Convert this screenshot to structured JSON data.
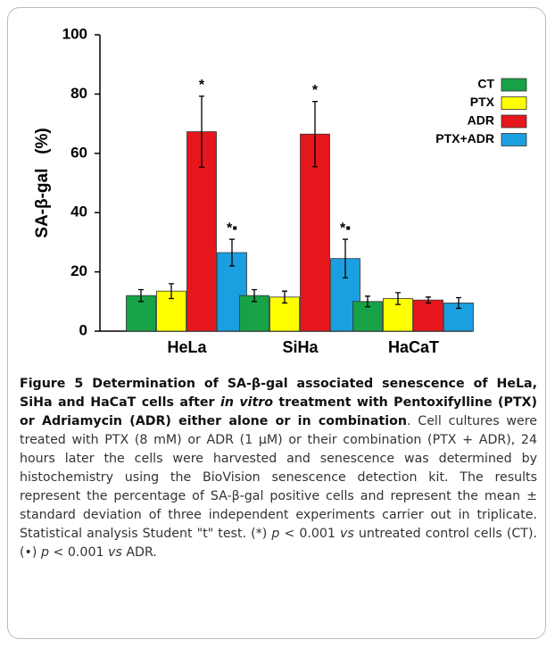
{
  "chart_data": {
    "type": "bar",
    "ylabel": "SA-β-gal   (%)",
    "categories": [
      "HeLa",
      "SiHa",
      "HaCaT"
    ],
    "series": [
      {
        "name": "CT",
        "color": "#17a247",
        "values": [
          12,
          12,
          10
        ],
        "errors": [
          2,
          2,
          1.8
        ]
      },
      {
        "name": "PTX",
        "color": "#ffff00",
        "values": [
          13.5,
          11.5,
          11
        ],
        "errors": [
          2.5,
          2,
          2
        ]
      },
      {
        "name": "ADR",
        "color": "#e5161c",
        "values": [
          67.3,
          66.5,
          10.5
        ],
        "errors": [
          12,
          11,
          1
        ],
        "notes": [
          "*",
          "*",
          null
        ]
      },
      {
        "name": "PTX+ADR",
        "color": "#1c9fe0",
        "values": [
          26.5,
          24.5,
          9.5
        ],
        "errors": [
          4.5,
          6.5,
          1.8
        ],
        "notes": [
          "*▪",
          "*▪",
          null
        ]
      }
    ],
    "ylim": [
      0,
      100
    ],
    "yticks": [
      0,
      20,
      40,
      60,
      80,
      100
    ],
    "grid": false,
    "legend": "upper right"
  },
  "caption": [
    {
      "text": "Figure 5 Determination of SA-β-gal associated senescence of HeLa, SiHa and HaCaT cells after ",
      "style": "bold"
    },
    {
      "text": "in vitro",
      "style": "bold-italic"
    },
    {
      "text": " treatment with Pentoxifylline (PTX) or Adriamycin (ADR) either alone or in combination",
      "style": "bold"
    },
    {
      "text": ". Cell cultures were treated with PTX (8 mM) or ADR (1 μM) or their combination (PTX + ADR), 24 hours later the cells were harvested and senescence was determined by histochemistry using the BioVision senescence detection kit. The results represent the percentage of SA-β-gal positive cells and represent the mean ± standard deviation of three independent experiments carrier out in triplicate. Statistical analysis Student \"t\" test. (*) ",
      "style": "normal"
    },
    {
      "text": "p",
      "style": "italic"
    },
    {
      "text": " < 0.001 ",
      "style": "normal"
    },
    {
      "text": "vs",
      "style": "italic"
    },
    {
      "text": " untreated control cells (CT). (•) ",
      "style": "normal"
    },
    {
      "text": "p",
      "style": "italic"
    },
    {
      "text": " < 0.001 ",
      "style": "normal"
    },
    {
      "text": "vs",
      "style": "italic"
    },
    {
      "text": " ADR.",
      "style": "normal"
    }
  ]
}
